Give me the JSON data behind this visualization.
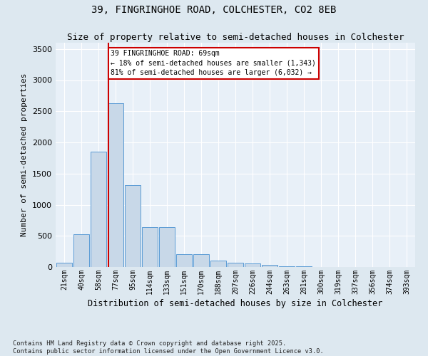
{
  "title1": "39, FINGRINGHOE ROAD, COLCHESTER, CO2 8EB",
  "title2": "Size of property relative to semi-detached houses in Colchester",
  "xlabel": "Distribution of semi-detached houses by size in Colchester",
  "ylabel": "Number of semi-detached properties",
  "footnote": "Contains HM Land Registry data © Crown copyright and database right 2025.\nContains public sector information licensed under the Open Government Licence v3.0.",
  "bin_labels": [
    "21sqm",
    "40sqm",
    "58sqm",
    "77sqm",
    "95sqm",
    "114sqm",
    "133sqm",
    "151sqm",
    "170sqm",
    "188sqm",
    "207sqm",
    "226sqm",
    "244sqm",
    "263sqm",
    "281sqm",
    "300sqm",
    "319sqm",
    "337sqm",
    "356sqm",
    "374sqm",
    "393sqm"
  ],
  "bar_heights": [
    70,
    530,
    1850,
    2630,
    1320,
    640,
    640,
    210,
    210,
    100,
    70,
    55,
    40,
    15,
    10,
    5,
    3,
    2,
    1,
    1,
    0
  ],
  "bar_color": "#c8d8e8",
  "bar_edge_color": "#5b9bd5",
  "property_size_bin": 3,
  "vline_color": "#cc0000",
  "annotation_text": "39 FINGRINGHOE ROAD: 69sqm\n← 18% of semi-detached houses are smaller (1,343)\n81% of semi-detached houses are larger (6,032) →",
  "annotation_box_color": "#cc0000",
  "ylim": [
    0,
    3600
  ],
  "yticks": [
    0,
    500,
    1000,
    1500,
    2000,
    2500,
    3000,
    3500
  ],
  "bg_color": "#dde8f0",
  "plot_bg_color": "#e8f0f8",
  "grid_color": "#ffffff",
  "title1_fontsize": 10,
  "title2_fontsize": 9
}
